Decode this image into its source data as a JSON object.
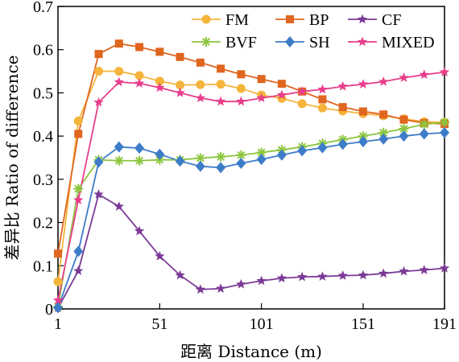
{
  "chart_data": {
    "type": "line",
    "xlabel": "距离 Distance (m)",
    "ylabel": "差异比 Ratio of difference",
    "xlim": [
      1,
      191
    ],
    "ylim": [
      0,
      0.7
    ],
    "xticks": [
      1,
      51,
      101,
      151,
      191
    ],
    "yticks": [
      0,
      0.1,
      0.2,
      0.3,
      0.4,
      0.5,
      0.6,
      0.7
    ],
    "ytick_labels": [
      "0",
      "0.1",
      "0.2",
      "0.3",
      "0.4",
      "0.5",
      "0.6",
      "0.7"
    ],
    "legend_position": "top-right",
    "x": [
      1,
      11,
      21,
      31,
      41,
      51,
      61,
      71,
      81,
      91,
      101,
      111,
      121,
      131,
      141,
      151,
      161,
      171,
      181,
      191
    ],
    "series": [
      {
        "name": "FM",
        "color": "#f5b43c",
        "marker": "circle",
        "values": [
          0.063,
          0.435,
          0.55,
          0.55,
          0.54,
          0.527,
          0.518,
          0.519,
          0.52,
          0.51,
          0.495,
          0.487,
          0.475,
          0.465,
          0.458,
          0.452,
          0.447,
          0.44,
          0.433,
          0.432
        ]
      },
      {
        "name": "BP",
        "color": "#e0651f",
        "marker": "square",
        "values": [
          0.128,
          0.405,
          0.59,
          0.614,
          0.606,
          0.595,
          0.583,
          0.57,
          0.556,
          0.543,
          0.532,
          0.521,
          0.503,
          0.485,
          0.467,
          0.457,
          0.45,
          0.438,
          0.43,
          0.428
        ]
      },
      {
        "name": "CF",
        "color": "#7b3a96",
        "marker": "star",
        "values": [
          0.002,
          0.088,
          0.265,
          0.237,
          0.18,
          0.122,
          0.078,
          0.045,
          0.047,
          0.057,
          0.065,
          0.071,
          0.074,
          0.075,
          0.077,
          0.078,
          0.082,
          0.087,
          0.09,
          0.094
        ]
      },
      {
        "name": "BVF",
        "color": "#8dc63f",
        "marker": "asterisk",
        "values": [
          0.005,
          0.278,
          0.345,
          0.343,
          0.343,
          0.345,
          0.345,
          0.349,
          0.352,
          0.356,
          0.362,
          0.368,
          0.375,
          0.383,
          0.392,
          0.4,
          0.408,
          0.417,
          0.427,
          0.432
        ]
      },
      {
        "name": "SH",
        "color": "#3d7cc9",
        "marker": "diamond",
        "values": [
          0.003,
          0.133,
          0.34,
          0.375,
          0.372,
          0.358,
          0.342,
          0.33,
          0.327,
          0.337,
          0.346,
          0.356,
          0.366,
          0.373,
          0.381,
          0.387,
          0.393,
          0.4,
          0.405,
          0.408
        ]
      },
      {
        "name": "MIXED",
        "color": "#e83e8c",
        "marker": "star",
        "values": [
          0.02,
          0.252,
          0.478,
          0.525,
          0.522,
          0.512,
          0.5,
          0.488,
          0.48,
          0.48,
          0.488,
          0.495,
          0.503,
          0.508,
          0.515,
          0.52,
          0.526,
          0.535,
          0.542,
          0.548
        ]
      }
    ]
  }
}
